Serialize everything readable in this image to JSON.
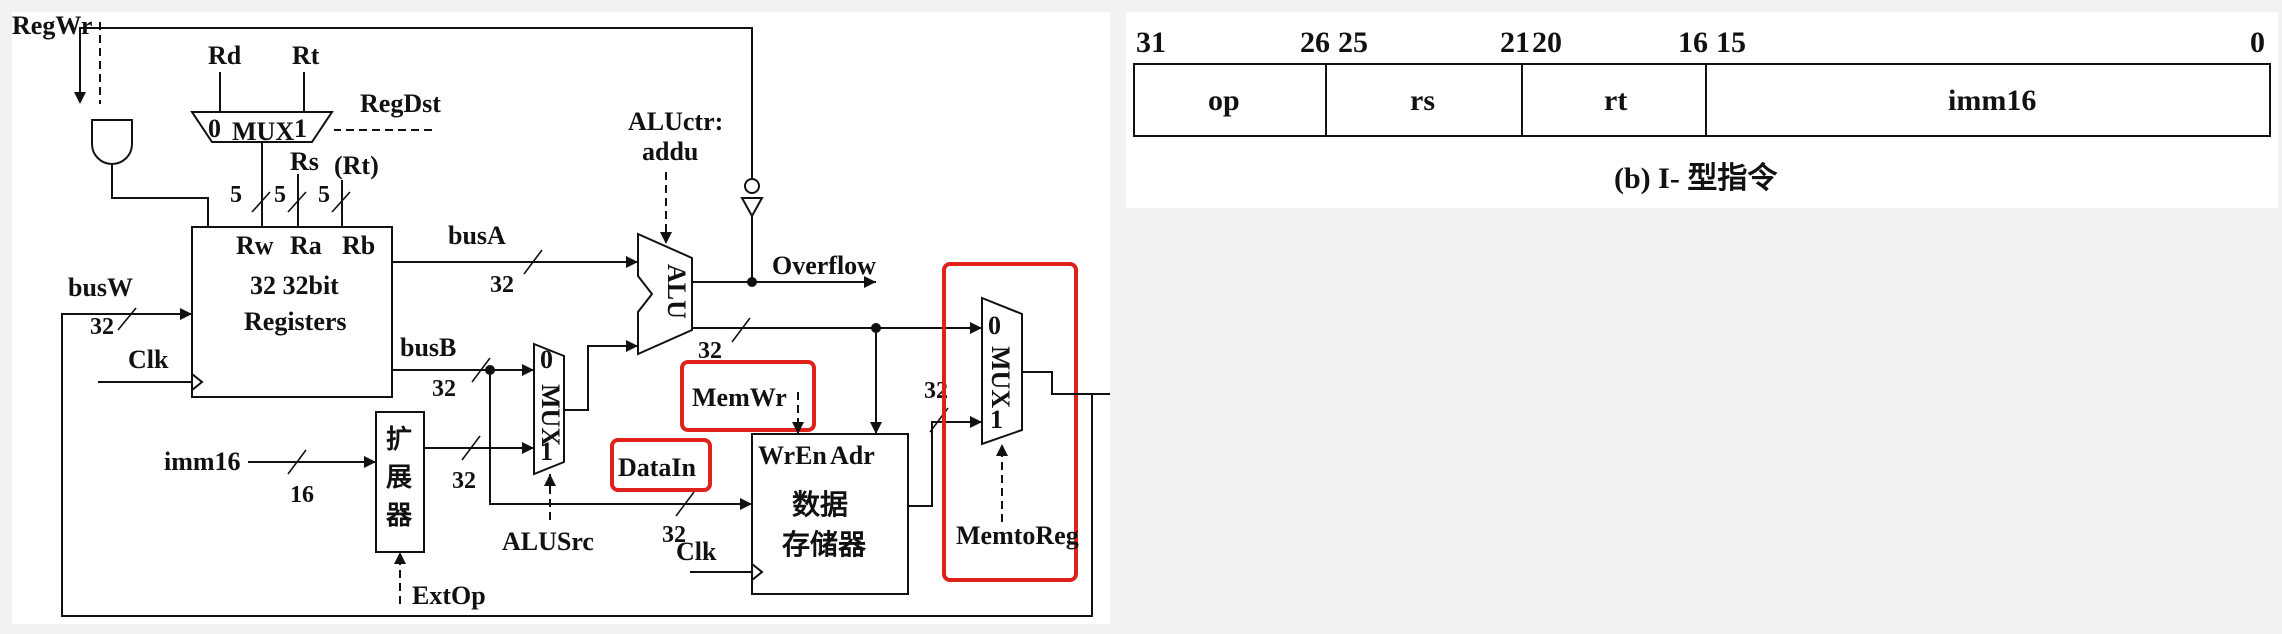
{
  "datapath": {
    "signals": {
      "regwr": "RegWr",
      "regdst": "RegDst",
      "aluctr": "ALUctr:",
      "aluctr_value": "addu",
      "alusrc": "ALUSrc",
      "extop": "ExtOp",
      "memwr": "MemWr",
      "memtoreg": "MemtoReg",
      "overflow": "Overflow",
      "clk": "Clk"
    },
    "register_fields": {
      "rd": "Rd",
      "rt": "Rt",
      "rs": "Rs",
      "rt_paren": "(Rt)"
    },
    "regdst_mux": {
      "in0": "0",
      "label": "MUX",
      "in1": "1"
    },
    "register_file": {
      "rw": "Rw",
      "ra": "Ra",
      "rb": "Rb",
      "line1": "32 32bit",
      "line2": "Registers"
    },
    "buses": {
      "busa": "busA",
      "busb": "busB",
      "busw": "busW",
      "imm16": "imm16",
      "datain": "DataIn"
    },
    "widths": {
      "five": "5",
      "thirty_two": "32",
      "sixteen": "16"
    },
    "alu": {
      "label": "ALU"
    },
    "alusrc_mux": {
      "in0": "0",
      "label": "MUX",
      "in1": "1"
    },
    "memtoreg_mux": {
      "in0": "0",
      "label": "MUX",
      "in1": "1"
    },
    "extender": {
      "label": "扩展器"
    },
    "data_memory": {
      "wren": "WrEn",
      "adr": "Adr",
      "line1": "数据",
      "line2": "存储器"
    },
    "highlight_color": "#e0201b"
  },
  "instruction_format": {
    "bit_labels": [
      "31",
      "26",
      "25",
      "21",
      "20",
      "16",
      "15",
      "0"
    ],
    "fields": [
      "op",
      "rs",
      "rt",
      "imm16"
    ],
    "caption": "(b) I- 型指令"
  }
}
